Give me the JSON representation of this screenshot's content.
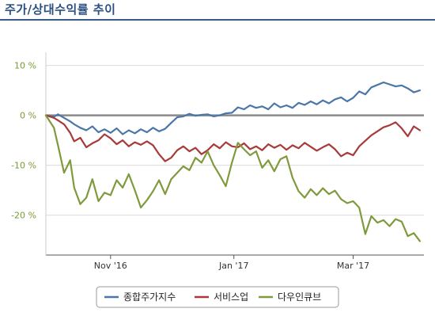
{
  "header": {
    "title": "주가/상대수익률 추이"
  },
  "chart_data": {
    "type": "line",
    "ylim": [
      -28,
      12
    ],
    "yticks": [
      10,
      0,
      -10,
      -20
    ],
    "ytick_labels": [
      "10 %",
      "0 %",
      "-10 %",
      "-20 %"
    ],
    "xlim": [
      "2016-09-30",
      "2017-04-05"
    ],
    "xticks": [
      "2016-11-01",
      "2017-01-01",
      "2017-03-01"
    ],
    "xtick_labels": [
      "Nov '16",
      "Jan '17",
      "Mar '17"
    ],
    "grid": true,
    "legend_position": "bottom",
    "series": [
      {
        "name": "종합주가지수",
        "color": "#4a76a8",
        "x": [
          "2016-09-30",
          "2016-10-04",
          "2016-10-06",
          "2016-10-09",
          "2016-10-12",
          "2016-10-14",
          "2016-10-17",
          "2016-10-20",
          "2016-10-23",
          "2016-10-26",
          "2016-10-29",
          "2016-11-01",
          "2016-11-04",
          "2016-11-07",
          "2016-11-10",
          "2016-11-13",
          "2016-11-16",
          "2016-11-19",
          "2016-11-22",
          "2016-11-25",
          "2016-11-28",
          "2016-12-01",
          "2016-12-04",
          "2016-12-07",
          "2016-12-10",
          "2016-12-13",
          "2016-12-16",
          "2016-12-19",
          "2016-12-22",
          "2016-12-25",
          "2016-12-28",
          "2016-12-31",
          "2017-01-03",
          "2017-01-06",
          "2017-01-09",
          "2017-01-12",
          "2017-01-15",
          "2017-01-18",
          "2017-01-21",
          "2017-01-24",
          "2017-01-27",
          "2017-01-30",
          "2017-02-02",
          "2017-02-05",
          "2017-02-08",
          "2017-02-11",
          "2017-02-14",
          "2017-02-17",
          "2017-02-20",
          "2017-02-23",
          "2017-02-26",
          "2017-03-01",
          "2017-03-04",
          "2017-03-07",
          "2017-03-10",
          "2017-03-13",
          "2017-03-16",
          "2017-03-19",
          "2017-03-22",
          "2017-03-25",
          "2017-03-28",
          "2017-03-31",
          "2017-04-03"
        ],
        "y": [
          0,
          -0.3,
          0.2,
          -0.5,
          -1.2,
          -1.8,
          -2.5,
          -3.0,
          -2.2,
          -3.4,
          -2.8,
          -3.5,
          -2.6,
          -3.8,
          -3.0,
          -3.6,
          -2.8,
          -3.4,
          -2.5,
          -3.2,
          -2.7,
          -1.5,
          -0.4,
          -0.2,
          0.3,
          -0.1,
          0.1,
          0.2,
          -0.2,
          0.0,
          0.4,
          0.5,
          1.6,
          1.2,
          2.0,
          1.5,
          1.8,
          1.2,
          2.4,
          1.6,
          2.0,
          1.5,
          2.5,
          2.1,
          2.8,
          2.2,
          3.0,
          2.4,
          3.2,
          3.6,
          2.8,
          3.5,
          4.8,
          4.2,
          5.6,
          6.1,
          6.6,
          6.2,
          5.8,
          6.0,
          5.4,
          4.6,
          5.0
        ]
      },
      {
        "name": "서비스업",
        "color": "#a83a3a",
        "x": [
          "2016-09-30",
          "2016-10-04",
          "2016-10-06",
          "2016-10-09",
          "2016-10-12",
          "2016-10-14",
          "2016-10-17",
          "2016-10-20",
          "2016-10-23",
          "2016-10-26",
          "2016-10-29",
          "2016-11-01",
          "2016-11-04",
          "2016-11-07",
          "2016-11-10",
          "2016-11-13",
          "2016-11-16",
          "2016-11-19",
          "2016-11-22",
          "2016-11-25",
          "2016-11-28",
          "2016-12-01",
          "2016-12-04",
          "2016-12-07",
          "2016-12-10",
          "2016-12-13",
          "2016-12-16",
          "2016-12-19",
          "2016-12-22",
          "2016-12-25",
          "2016-12-28",
          "2016-12-31",
          "2017-01-03",
          "2017-01-06",
          "2017-01-09",
          "2017-01-12",
          "2017-01-15",
          "2017-01-18",
          "2017-01-21",
          "2017-01-24",
          "2017-01-27",
          "2017-01-30",
          "2017-02-02",
          "2017-02-05",
          "2017-02-08",
          "2017-02-11",
          "2017-02-14",
          "2017-02-17",
          "2017-02-20",
          "2017-02-23",
          "2017-02-26",
          "2017-03-01",
          "2017-03-04",
          "2017-03-07",
          "2017-03-10",
          "2017-03-13",
          "2017-03-16",
          "2017-03-19",
          "2017-03-22",
          "2017-03-25",
          "2017-03-28",
          "2017-03-31",
          "2017-04-03"
        ],
        "y": [
          0,
          -0.5,
          -1.0,
          -1.8,
          -3.5,
          -5.2,
          -4.5,
          -6.4,
          -5.6,
          -5.0,
          -3.8,
          -4.6,
          -5.8,
          -5.0,
          -6.2,
          -5.4,
          -5.9,
          -5.2,
          -6.0,
          -7.8,
          -9.2,
          -8.5,
          -7.0,
          -6.2,
          -7.2,
          -6.5,
          -7.8,
          -7.0,
          -5.8,
          -6.6,
          -5.4,
          -6.2,
          -6.4,
          -5.6,
          -6.8,
          -6.2,
          -7.0,
          -5.8,
          -6.5,
          -5.9,
          -6.9,
          -6.0,
          -6.6,
          -5.5,
          -6.3,
          -7.1,
          -6.4,
          -5.8,
          -6.8,
          -8.2,
          -7.5,
          -8.0,
          -6.2,
          -5.1,
          -4.0,
          -3.2,
          -2.4,
          -2.0,
          -1.4,
          -2.6,
          -4.2,
          -2.2,
          -3.0
        ]
      },
      {
        "name": "다우인큐브",
        "color": "#7f9a3c",
        "x": [
          "2016-09-30",
          "2016-10-04",
          "2016-10-06",
          "2016-10-09",
          "2016-10-12",
          "2016-10-14",
          "2016-10-17",
          "2016-10-20",
          "2016-10-23",
          "2016-10-26",
          "2016-10-29",
          "2016-11-01",
          "2016-11-04",
          "2016-11-07",
          "2016-11-10",
          "2016-11-13",
          "2016-11-16",
          "2016-11-19",
          "2016-11-22",
          "2016-11-25",
          "2016-11-28",
          "2016-12-01",
          "2016-12-04",
          "2016-12-07",
          "2016-12-10",
          "2016-12-13",
          "2016-12-16",
          "2016-12-19",
          "2016-12-22",
          "2016-12-25",
          "2016-12-28",
          "2016-12-31",
          "2017-01-03",
          "2017-01-06",
          "2017-01-09",
          "2017-01-12",
          "2017-01-15",
          "2017-01-18",
          "2017-01-21",
          "2017-01-24",
          "2017-01-27",
          "2017-01-30",
          "2017-02-02",
          "2017-02-05",
          "2017-02-08",
          "2017-02-11",
          "2017-02-14",
          "2017-02-17",
          "2017-02-20",
          "2017-02-23",
          "2017-02-26",
          "2017-03-01",
          "2017-03-04",
          "2017-03-07",
          "2017-03-10",
          "2017-03-13",
          "2017-03-16",
          "2017-03-19",
          "2017-03-22",
          "2017-03-25",
          "2017-03-28",
          "2017-03-31",
          "2017-04-03"
        ],
        "y": [
          0,
          -2.5,
          -6.0,
          -11.5,
          -9.0,
          -14.5,
          -17.8,
          -16.5,
          -12.8,
          -17.2,
          -15.5,
          -16.0,
          -13.0,
          -14.5,
          -11.8,
          -15.0,
          -18.5,
          -17.0,
          -15.2,
          -13.0,
          -15.8,
          -12.8,
          -11.5,
          -10.2,
          -11.0,
          -8.5,
          -9.5,
          -7.2,
          -10.0,
          -12.0,
          -14.2,
          -9.5,
          -5.5,
          -6.8,
          -8.0,
          -7.2,
          -10.5,
          -9.0,
          -11.2,
          -8.8,
          -8.2,
          -12.5,
          -15.2,
          -16.5,
          -14.8,
          -16.0,
          -14.6,
          -15.8,
          -15.1,
          -16.8,
          -17.6,
          -17.2,
          -18.5,
          -23.8,
          -20.2,
          -21.5,
          -21.0,
          -22.2,
          -20.8,
          -21.3,
          -24.2,
          -23.6,
          -25.2
        ]
      }
    ]
  }
}
